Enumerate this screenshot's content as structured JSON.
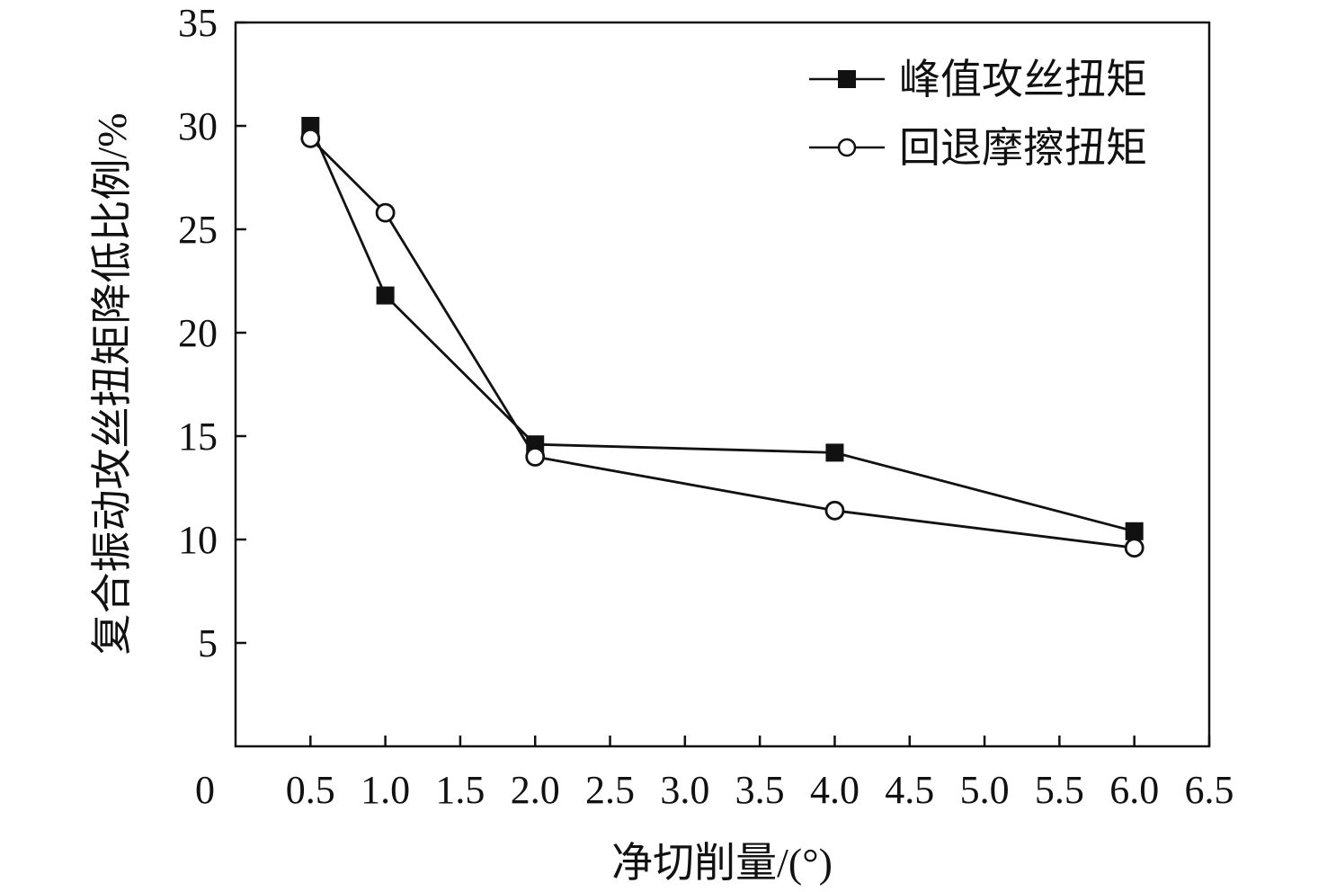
{
  "chart_data": {
    "type": "line",
    "title": "",
    "xlabel": "净切削量/(°)",
    "ylabel": "复合振动攻丝扭矩降低比例/%",
    "xlim": [
      0,
      6.5
    ],
    "ylim": [
      0,
      35
    ],
    "x_ticks": [
      0.5,
      1.0,
      1.5,
      2.0,
      2.5,
      3.0,
      3.5,
      4.0,
      4.5,
      5.0,
      5.5,
      6.0,
      6.5
    ],
    "x_tick_labels": [
      "0.5",
      "1.0",
      "1.5",
      "2.0",
      "2.5",
      "3.0",
      "3.5",
      "4.0",
      "4.5",
      "5.0",
      "5.5",
      "6.0",
      "6.5"
    ],
    "y_ticks": [
      5,
      10,
      15,
      20,
      25,
      30,
      35
    ],
    "y_tick_labels": [
      "5",
      "10",
      "15",
      "20",
      "25",
      "30",
      "35"
    ],
    "origin_label": "0",
    "grid": false,
    "legend_position": "top-right",
    "series": [
      {
        "name": "峰值攻丝扭矩",
        "marker": "filled-square",
        "color": "#111111",
        "x": [
          0.5,
          1.0,
          2.0,
          4.0,
          6.0
        ],
        "y": [
          30.0,
          21.8,
          14.6,
          14.2,
          10.4
        ]
      },
      {
        "name": "回退摩擦扭矩",
        "marker": "open-circle",
        "color": "#111111",
        "x": [
          0.5,
          1.0,
          2.0,
          4.0,
          6.0
        ],
        "y": [
          29.4,
          25.8,
          14.0,
          11.4,
          9.6
        ]
      }
    ]
  }
}
